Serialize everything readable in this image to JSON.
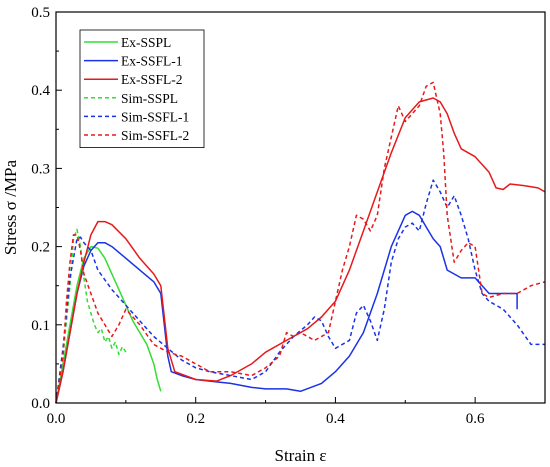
{
  "chart_data": {
    "type": "line",
    "xlabel": "Strain  ε",
    "ylabel": "Stress σ /MPa",
    "xlim": [
      0.0,
      0.7
    ],
    "ylim": [
      0.0,
      0.5
    ],
    "x_ticks": [
      "0.0",
      "0.2",
      "0.4",
      "0.6"
    ],
    "y_ticks": [
      "0.0",
      "0.1",
      "0.2",
      "0.3",
      "0.4",
      "0.5"
    ],
    "grid": false,
    "legend_position": "top-left",
    "series": [
      {
        "name": "Ex-SSPL",
        "color": "#33dd33",
        "dash": "solid",
        "points": [
          [
            0.0,
            0.0
          ],
          [
            0.01,
            0.05
          ],
          [
            0.02,
            0.1
          ],
          [
            0.03,
            0.15
          ],
          [
            0.04,
            0.185
          ],
          [
            0.05,
            0.2
          ],
          [
            0.06,
            0.198
          ],
          [
            0.07,
            0.185
          ],
          [
            0.08,
            0.165
          ],
          [
            0.09,
            0.145
          ],
          [
            0.1,
            0.125
          ],
          [
            0.11,
            0.105
          ],
          [
            0.12,
            0.09
          ],
          [
            0.13,
            0.075
          ],
          [
            0.14,
            0.05
          ],
          [
            0.145,
            0.03
          ],
          [
            0.15,
            0.015
          ]
        ]
      },
      {
        "name": "Ex-SSFL-1",
        "color": "#1a33e6",
        "dash": "solid",
        "points": [
          [
            0.0,
            0.0
          ],
          [
            0.01,
            0.04
          ],
          [
            0.02,
            0.09
          ],
          [
            0.03,
            0.14
          ],
          [
            0.04,
            0.175
          ],
          [
            0.05,
            0.195
          ],
          [
            0.06,
            0.205
          ],
          [
            0.07,
            0.205
          ],
          [
            0.08,
            0.2
          ],
          [
            0.1,
            0.185
          ],
          [
            0.12,
            0.17
          ],
          [
            0.14,
            0.155
          ],
          [
            0.15,
            0.14
          ],
          [
            0.155,
            0.1
          ],
          [
            0.16,
            0.06
          ],
          [
            0.165,
            0.04
          ],
          [
            0.18,
            0.035
          ],
          [
            0.2,
            0.03
          ],
          [
            0.22,
            0.028
          ],
          [
            0.25,
            0.025
          ],
          [
            0.28,
            0.02
          ],
          [
            0.3,
            0.018
          ],
          [
            0.33,
            0.018
          ],
          [
            0.35,
            0.015
          ],
          [
            0.38,
            0.025
          ],
          [
            0.4,
            0.04
          ],
          [
            0.42,
            0.06
          ],
          [
            0.44,
            0.09
          ],
          [
            0.46,
            0.14
          ],
          [
            0.48,
            0.2
          ],
          [
            0.5,
            0.24
          ],
          [
            0.51,
            0.245
          ],
          [
            0.52,
            0.24
          ],
          [
            0.53,
            0.225
          ],
          [
            0.54,
            0.21
          ],
          [
            0.55,
            0.2
          ],
          [
            0.56,
            0.17
          ],
          [
            0.57,
            0.165
          ],
          [
            0.58,
            0.16
          ],
          [
            0.6,
            0.16
          ],
          [
            0.62,
            0.14
          ],
          [
            0.64,
            0.14
          ],
          [
            0.66,
            0.14
          ],
          [
            0.66,
            0.12
          ]
        ]
      },
      {
        "name": "Ex-SSFL-2",
        "color": "#e61a1a",
        "dash": "solid",
        "points": [
          [
            0.0,
            0.0
          ],
          [
            0.01,
            0.04
          ],
          [
            0.02,
            0.09
          ],
          [
            0.03,
            0.14
          ],
          [
            0.04,
            0.18
          ],
          [
            0.05,
            0.215
          ],
          [
            0.06,
            0.232
          ],
          [
            0.07,
            0.232
          ],
          [
            0.08,
            0.228
          ],
          [
            0.1,
            0.21
          ],
          [
            0.12,
            0.185
          ],
          [
            0.14,
            0.165
          ],
          [
            0.15,
            0.15
          ],
          [
            0.155,
            0.11
          ],
          [
            0.16,
            0.07
          ],
          [
            0.17,
            0.04
          ],
          [
            0.2,
            0.03
          ],
          [
            0.23,
            0.028
          ],
          [
            0.25,
            0.035
          ],
          [
            0.28,
            0.05
          ],
          [
            0.3,
            0.065
          ],
          [
            0.33,
            0.08
          ],
          [
            0.36,
            0.095
          ],
          [
            0.38,
            0.11
          ],
          [
            0.4,
            0.13
          ],
          [
            0.42,
            0.17
          ],
          [
            0.44,
            0.22
          ],
          [
            0.46,
            0.27
          ],
          [
            0.48,
            0.32
          ],
          [
            0.5,
            0.365
          ],
          [
            0.52,
            0.385
          ],
          [
            0.54,
            0.39
          ],
          [
            0.55,
            0.385
          ],
          [
            0.56,
            0.37
          ],
          [
            0.57,
            0.345
          ],
          [
            0.58,
            0.325
          ],
          [
            0.6,
            0.315
          ],
          [
            0.61,
            0.305
          ],
          [
            0.62,
            0.295
          ],
          [
            0.63,
            0.275
          ],
          [
            0.64,
            0.273
          ],
          [
            0.65,
            0.28
          ],
          [
            0.67,
            0.278
          ],
          [
            0.69,
            0.275
          ],
          [
            0.7,
            0.27
          ]
        ]
      },
      {
        "name": "Sim-SSPL",
        "color": "#33dd33",
        "dash": "dashed",
        "points": [
          [
            0.0,
            0.0
          ],
          [
            0.01,
            0.06
          ],
          [
            0.02,
            0.15
          ],
          [
            0.025,
            0.21
          ],
          [
            0.03,
            0.222
          ],
          [
            0.035,
            0.2
          ],
          [
            0.04,
            0.16
          ],
          [
            0.045,
            0.13
          ],
          [
            0.05,
            0.115
          ],
          [
            0.055,
            0.1
          ],
          [
            0.06,
            0.09
          ],
          [
            0.065,
            0.095
          ],
          [
            0.07,
            0.078
          ],
          [
            0.075,
            0.085
          ],
          [
            0.08,
            0.07
          ],
          [
            0.085,
            0.078
          ],
          [
            0.09,
            0.062
          ],
          [
            0.095,
            0.072
          ],
          [
            0.1,
            0.065
          ]
        ]
      },
      {
        "name": "Sim-SSFL-1",
        "color": "#1a33e6",
        "dash": "dashed",
        "points": [
          [
            0.0,
            0.0
          ],
          [
            0.01,
            0.07
          ],
          [
            0.02,
            0.16
          ],
          [
            0.03,
            0.21
          ],
          [
            0.035,
            0.212
          ],
          [
            0.04,
            0.205
          ],
          [
            0.05,
            0.195
          ],
          [
            0.06,
            0.17
          ],
          [
            0.08,
            0.145
          ],
          [
            0.1,
            0.125
          ],
          [
            0.12,
            0.105
          ],
          [
            0.14,
            0.085
          ],
          [
            0.16,
            0.07
          ],
          [
            0.18,
            0.055
          ],
          [
            0.2,
            0.045
          ],
          [
            0.22,
            0.04
          ],
          [
            0.25,
            0.035
          ],
          [
            0.28,
            0.03
          ],
          [
            0.3,
            0.04
          ],
          [
            0.32,
            0.065
          ],
          [
            0.34,
            0.085
          ],
          [
            0.36,
            0.1
          ],
          [
            0.37,
            0.11
          ],
          [
            0.38,
            0.105
          ],
          [
            0.39,
            0.085
          ],
          [
            0.4,
            0.07
          ],
          [
            0.42,
            0.08
          ],
          [
            0.43,
            0.115
          ],
          [
            0.44,
            0.125
          ],
          [
            0.45,
            0.105
          ],
          [
            0.46,
            0.08
          ],
          [
            0.47,
            0.12
          ],
          [
            0.48,
            0.18
          ],
          [
            0.49,
            0.21
          ],
          [
            0.5,
            0.225
          ],
          [
            0.51,
            0.23
          ],
          [
            0.52,
            0.22
          ],
          [
            0.53,
            0.255
          ],
          [
            0.54,
            0.285
          ],
          [
            0.55,
            0.27
          ],
          [
            0.56,
            0.25
          ],
          [
            0.57,
            0.265
          ],
          [
            0.58,
            0.24
          ],
          [
            0.59,
            0.21
          ],
          [
            0.6,
            0.17
          ],
          [
            0.61,
            0.14
          ],
          [
            0.62,
            0.13
          ],
          [
            0.64,
            0.12
          ],
          [
            0.66,
            0.1
          ],
          [
            0.68,
            0.075
          ],
          [
            0.69,
            0.075
          ],
          [
            0.7,
            0.075
          ]
        ]
      },
      {
        "name": "Sim-SSFL-2",
        "color": "#e61a1a",
        "dash": "dashed",
        "points": [
          [
            0.0,
            0.0
          ],
          [
            0.01,
            0.06
          ],
          [
            0.015,
            0.13
          ],
          [
            0.02,
            0.18
          ],
          [
            0.025,
            0.215
          ],
          [
            0.03,
            0.215
          ],
          [
            0.035,
            0.195
          ],
          [
            0.04,
            0.165
          ],
          [
            0.05,
            0.14
          ],
          [
            0.06,
            0.115
          ],
          [
            0.07,
            0.1
          ],
          [
            0.08,
            0.085
          ],
          [
            0.09,
            0.1
          ],
          [
            0.1,
            0.12
          ],
          [
            0.12,
            0.1
          ],
          [
            0.14,
            0.075
          ],
          [
            0.16,
            0.065
          ],
          [
            0.18,
            0.06
          ],
          [
            0.2,
            0.05
          ],
          [
            0.22,
            0.04
          ],
          [
            0.25,
            0.04
          ],
          [
            0.28,
            0.035
          ],
          [
            0.3,
            0.045
          ],
          [
            0.32,
            0.06
          ],
          [
            0.33,
            0.09
          ],
          [
            0.34,
            0.085
          ],
          [
            0.35,
            0.09
          ],
          [
            0.37,
            0.08
          ],
          [
            0.39,
            0.09
          ],
          [
            0.41,
            0.17
          ],
          [
            0.42,
            0.2
          ],
          [
            0.43,
            0.24
          ],
          [
            0.44,
            0.235
          ],
          [
            0.45,
            0.22
          ],
          [
            0.46,
            0.24
          ],
          [
            0.47,
            0.3
          ],
          [
            0.48,
            0.34
          ],
          [
            0.49,
            0.38
          ],
          [
            0.5,
            0.36
          ],
          [
            0.51,
            0.37
          ],
          [
            0.52,
            0.38
          ],
          [
            0.53,
            0.405
          ],
          [
            0.54,
            0.41
          ],
          [
            0.55,
            0.37
          ],
          [
            0.555,
            0.32
          ],
          [
            0.56,
            0.24
          ],
          [
            0.57,
            0.18
          ],
          [
            0.58,
            0.195
          ],
          [
            0.59,
            0.205
          ],
          [
            0.6,
            0.2
          ],
          [
            0.61,
            0.14
          ],
          [
            0.62,
            0.135
          ],
          [
            0.64,
            0.14
          ],
          [
            0.66,
            0.14
          ],
          [
            0.68,
            0.15
          ],
          [
            0.7,
            0.155
          ]
        ]
      }
    ]
  }
}
